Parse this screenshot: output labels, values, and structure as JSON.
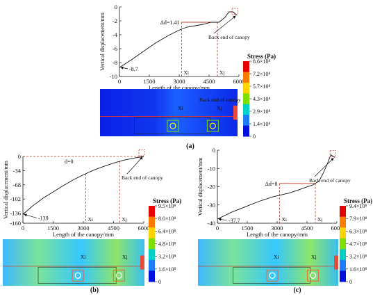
{
  "chart_data": [
    {
      "panel": "(a)",
      "type": "line",
      "xlabel": "Length of the canopy/mm",
      "ylabel": "Vertical displacement/mm",
      "xlim": [
        0,
        6000
      ],
      "ylim": [
        -10,
        0
      ],
      "xticks": [
        "0",
        "1500",
        "3000",
        "4500",
        "6000"
      ],
      "yticks": [
        "0",
        "-2",
        "-4",
        "-6",
        "-8",
        "-10"
      ],
      "series": [
        {
          "x": [
            0,
            600,
            1200,
            1800,
            2400,
            2800,
            3100,
            3400,
            3800,
            4200,
            4600,
            5000,
            5300,
            5500,
            5700,
            5900
          ],
          "y": [
            -8.7,
            -7.6,
            -6.4,
            -5.2,
            -4.2,
            -3.6,
            -3.2,
            -2.9,
            -2.7,
            -2.5,
            -2.2,
            -2.2,
            -1.5,
            -0.7,
            -0.7,
            -1.2
          ]
        }
      ],
      "annotations": {
        "start_value": "-8.7",
        "delta": "Δd=1.41",
        "xi": "Xi",
        "xj": "Xj",
        "back_end": "Back end of canopy"
      },
      "colorbar": {
        "title": "Stress (Pa)",
        "labels": [
          "8.6×10⁸",
          "7.2×10⁸",
          "5.7×10⁸",
          "4.3×10⁸",
          "2.9×10⁸",
          "1.4×10⁸",
          "0"
        ],
        "colors": [
          "#e60000",
          "#ff7a00",
          "#ffd400",
          "#7ee000",
          "#00d2c8",
          "#1e7cff",
          "#0010e0"
        ]
      },
      "image_labels": {
        "back_end": "Back end of canopy",
        "xi": "Xi",
        "xj": "Xj"
      },
      "caption": "(a)"
    },
    {
      "panel": "(b)",
      "type": "line",
      "xlabel": "Length of the canopy/mm",
      "ylabel": "Vertical displacement/mm",
      "xlim": [
        0,
        6000
      ],
      "ylim": [
        -160,
        0
      ],
      "xticks": [
        "0",
        "1500",
        "3000",
        "4500",
        "6000"
      ],
      "yticks": [
        "0",
        "-34",
        "-68",
        "-102",
        "-136",
        "-160"
      ],
      "series": [
        {
          "x": [
            0,
            500,
            1000,
            1500,
            2000,
            2500,
            3000,
            3500,
            4000,
            4500,
            5000,
            5500,
            6000
          ],
          "y": [
            -139,
            -118,
            -100,
            -85,
            -70,
            -56,
            -44,
            -33,
            -24,
            -16,
            -9,
            -4,
            0
          ]
        }
      ],
      "annotations": {
        "start_value": "-139",
        "delta": "d=0",
        "xi": "Xi",
        "xj": "Xj",
        "back_end": "Back end of canopy"
      },
      "colorbar": {
        "title": "Stress (Pa)",
        "labels": [
          "9.5×10⁸",
          "8.0×10⁸",
          "6.4×10⁸",
          "4.8×10⁸",
          "3.2×10⁸",
          "1.6×10⁸",
          "0"
        ],
        "colors": [
          "#e60000",
          "#ff7a00",
          "#ffd400",
          "#7ee000",
          "#00d2c8",
          "#1e7cff",
          "#0010e0"
        ]
      },
      "image_labels": {
        "xi": "Xi",
        "xj": "Xj"
      },
      "caption": "(b)"
    },
    {
      "panel": "(c)",
      "type": "line",
      "xlabel": "Length of the canopy/mm",
      "ylabel": "Vertical displacement/mm",
      "xlim": [
        0,
        6000
      ],
      "ylim": [
        -40,
        0
      ],
      "xticks": [
        "0",
        "1500",
        "3000",
        "4500",
        "6000"
      ],
      "yticks": [
        "0",
        "-10",
        "-20",
        "-30",
        "-40"
      ],
      "series": [
        {
          "x": [
            0,
            700,
            1400,
            2100,
            2800,
            3200,
            3600,
            4000,
            4400,
            4800,
            5100,
            5300,
            5500,
            5700,
            5900
          ],
          "y": [
            -37.7,
            -34,
            -31,
            -28,
            -25.5,
            -24.5,
            -23.5,
            -22,
            -20.5,
            -19,
            -17,
            -13,
            -8,
            -2.5,
            -4
          ]
        }
      ],
      "annotations": {
        "start_value": "-37.7",
        "delta": "Δd=8",
        "xi": "Xi",
        "xj": "Xj",
        "back_end": "Back end of canopy"
      },
      "colorbar": {
        "title": "Stress (Pa)",
        "labels": [
          "9.4×10⁸",
          "7.9×10⁸",
          "6.3×10⁸",
          "4.7×10⁸",
          "3.2×10⁸",
          "1.6×10⁸",
          "0"
        ],
        "colors": [
          "#e60000",
          "#ff7a00",
          "#ffd400",
          "#7ee000",
          "#00d2c8",
          "#1e7cff",
          "#0010e0"
        ]
      },
      "image_labels": {
        "xi": "Xi",
        "xj": "Xj"
      },
      "caption": "(c)"
    }
  ]
}
